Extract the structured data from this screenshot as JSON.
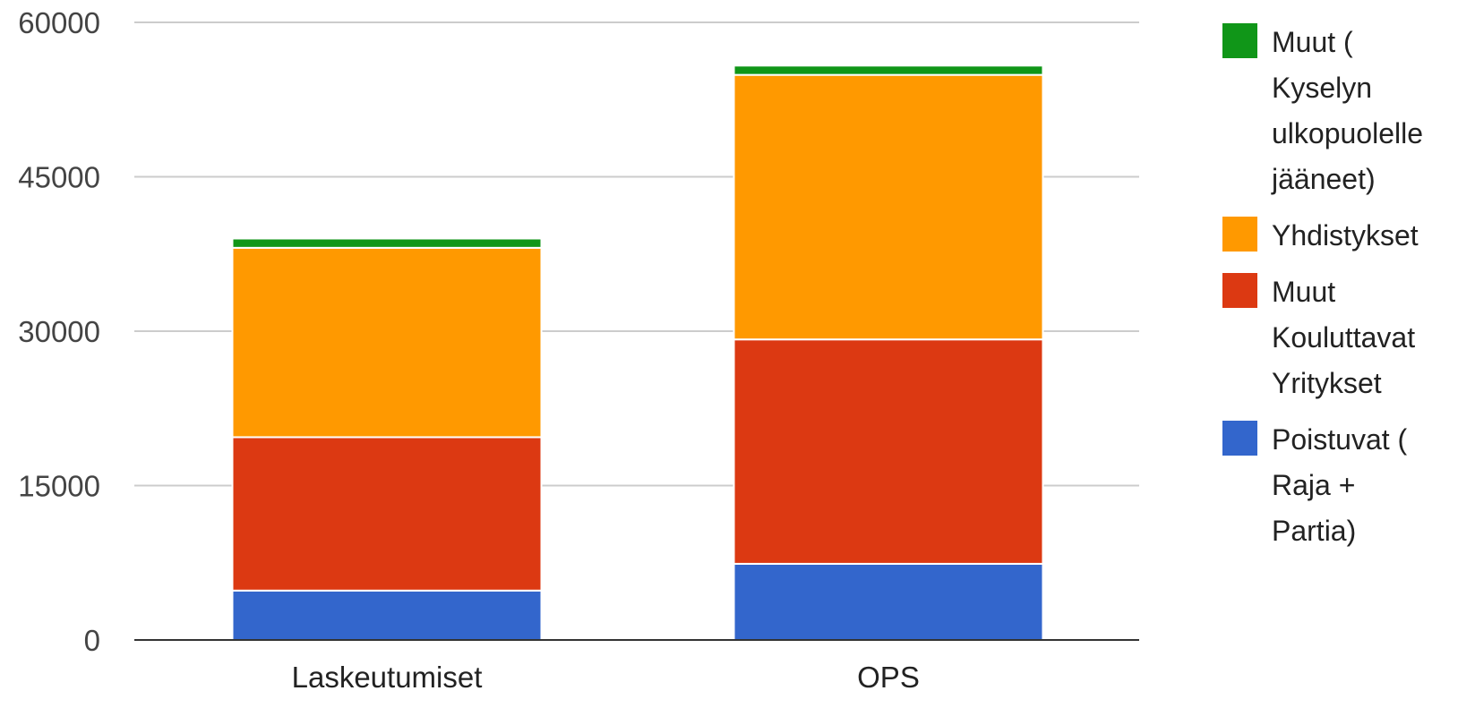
{
  "chart_data": {
    "type": "bar",
    "stacked": true,
    "categories": [
      "Laskeutumiset",
      "OPS"
    ],
    "series": [
      {
        "name": "Poistuvat ( Raja + Partia)",
        "color": "#3366cc",
        "values": [
          4800,
          7400
        ]
      },
      {
        "name": "Muut Kouluttavat Yritykset",
        "color": "#dc3912",
        "values": [
          14900,
          21800
        ]
      },
      {
        "name": "Yhdistykset",
        "color": "#ff9900",
        "values": [
          18400,
          25700
        ]
      },
      {
        "name": "Muut ( Kyselyn ulkopuolelle jääneet)",
        "color": "#109618",
        "values": [
          900,
          900
        ]
      }
    ],
    "yticks": [
      "0",
      "15000",
      "30000",
      "45000",
      "60000"
    ],
    "ylim": [
      0,
      60000
    ],
    "grid": true,
    "legend_position": "right"
  },
  "legend": {
    "items": [
      {
        "label": "Muut (\nKyselyn\nulkopuolelle\njääneet)",
        "color": "#109618"
      },
      {
        "label": "Yhdistykset",
        "color": "#ff9900"
      },
      {
        "label": "Muut\nKouluttavat\nYritykset",
        "color": "#dc3912"
      },
      {
        "label": "Poistuvat (\nRaja +\nPartia)",
        "color": "#3366cc"
      }
    ]
  }
}
